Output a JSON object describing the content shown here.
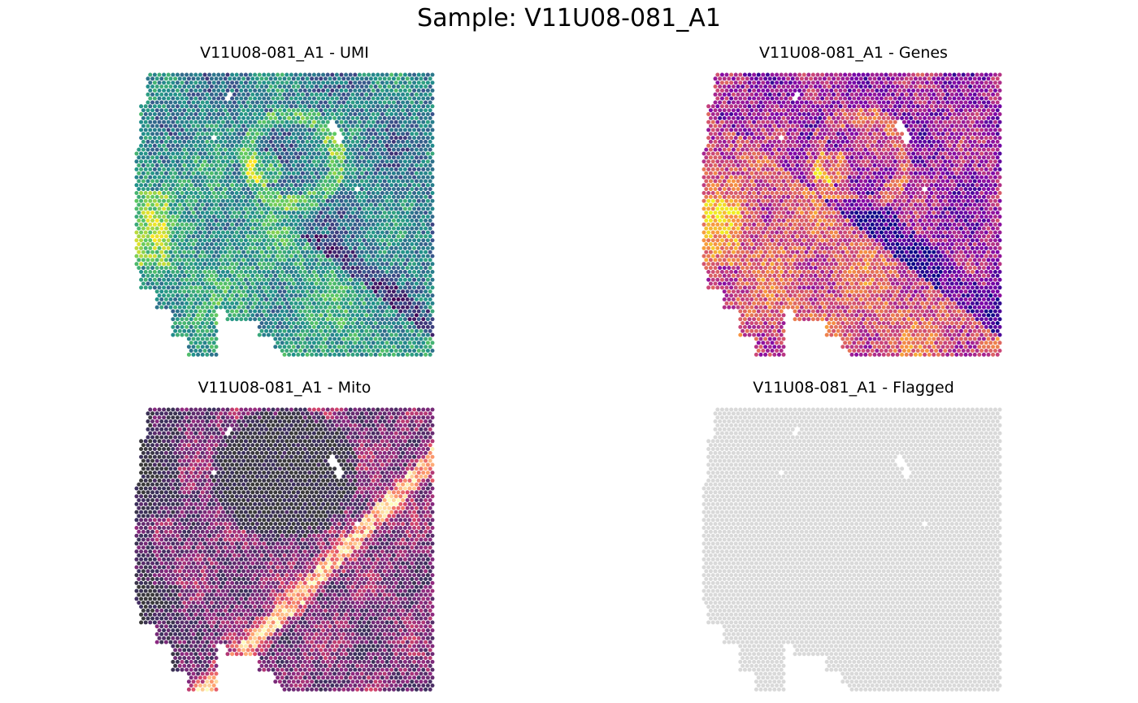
{
  "figure": {
    "title": "Sample: V11U08-081_A1"
  },
  "chart_data": [
    {
      "type": "scatter",
      "title": "V11U08-081_A1 - UMI",
      "metric": "UMI",
      "palette": "viridis",
      "colors": [
        "#440154",
        "#3b528b",
        "#21918c",
        "#5ec962",
        "#fde725"
      ],
      "legend": "none"
    },
    {
      "type": "scatter",
      "title": "V11U08-081_A1 - Genes",
      "metric": "Genes",
      "palette": "plasma",
      "colors": [
        "#0d0887",
        "#7e03a8",
        "#cc4778",
        "#f89540",
        "#f0f921"
      ],
      "legend": "none"
    },
    {
      "type": "scatter",
      "title": "V11U08-081_A1 - Mito",
      "metric": "Mito",
      "palette": "magma-dark",
      "colors": [
        "#3a3a3a",
        "#3b2f5e",
        "#8c2981",
        "#de4968",
        "#fe9f6d",
        "#fcfdbf"
      ],
      "legend": "none"
    },
    {
      "type": "scatter",
      "title": "V11U08-081_A1 - Flagged",
      "metric": "Flagged",
      "palette": "single",
      "colors": [
        "#d9d9d9"
      ],
      "legend": "none"
    }
  ]
}
